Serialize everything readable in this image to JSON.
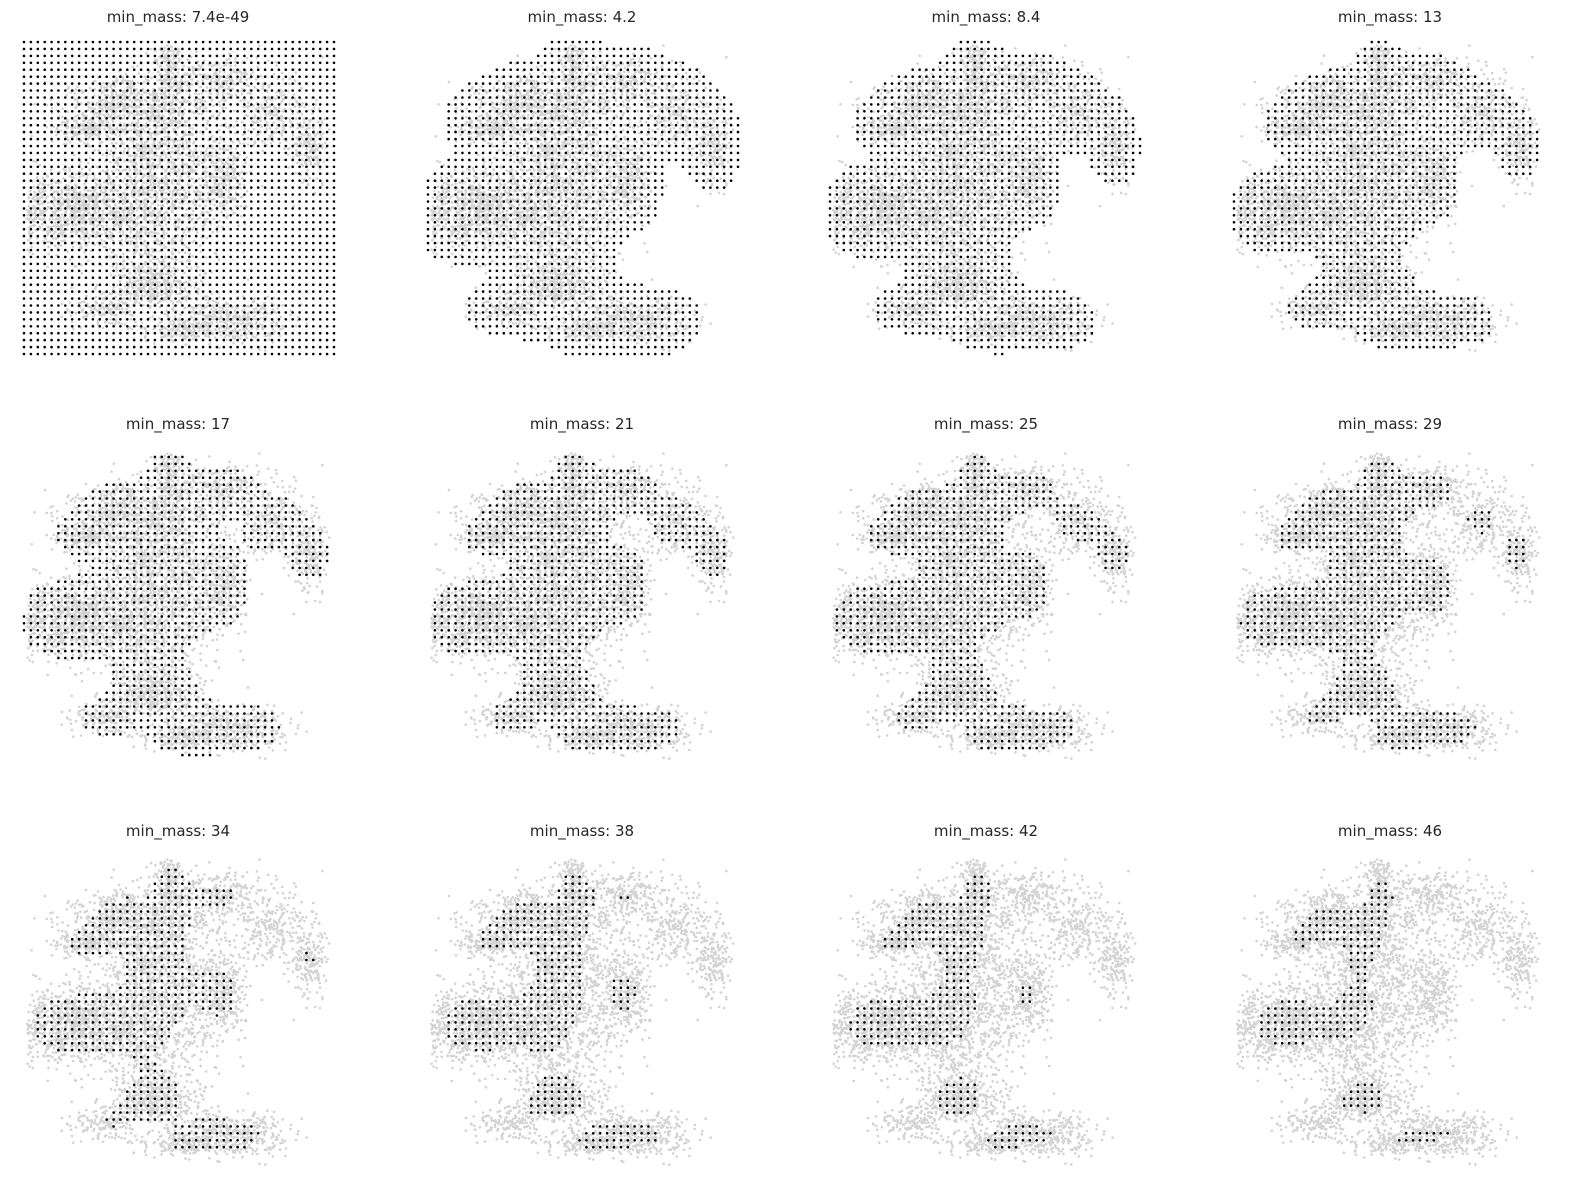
{
  "figure": {
    "layout": "3 rows x 4 columns grid of scatter panels",
    "background_color": "#ffffff",
    "cell_color": "#d3d3d3",
    "grid_point_color": "#000000",
    "axes_visible": false
  },
  "chart_data": [
    {
      "type": "scatter",
      "title": "min_mass:  7.4e-49",
      "threshold": 7.4e-49,
      "grid_coverage": "full square grid (all points shown)"
    },
    {
      "type": "scatter",
      "title": "min_mass:  4.2",
      "threshold": 4.2,
      "grid_coverage": "grid points over whole cell cloud"
    },
    {
      "type": "scatter",
      "title": "min_mass:  8.4",
      "threshold": 8.4,
      "grid_coverage": "grid points over most of cell cloud"
    },
    {
      "type": "scatter",
      "title": "min_mass:  13",
      "threshold": 13,
      "grid_coverage": "grid points over dense regions"
    },
    {
      "type": "scatter",
      "title": "min_mass:  17",
      "threshold": 17,
      "grid_coverage": "grid points over dense regions"
    },
    {
      "type": "scatter",
      "title": "min_mass:  21",
      "threshold": 21,
      "grid_coverage": "grid points over dense regions"
    },
    {
      "type": "scatter",
      "title": "min_mass:  25",
      "threshold": 25,
      "grid_coverage": "grid points over denser regions"
    },
    {
      "type": "scatter",
      "title": "min_mass:  29",
      "threshold": 29,
      "grid_coverage": "grid points over denser regions"
    },
    {
      "type": "scatter",
      "title": "min_mass:  34",
      "threshold": 34,
      "grid_coverage": "sparse grid points in dense cores"
    },
    {
      "type": "scatter",
      "title": "min_mass:  38",
      "threshold": 38,
      "grid_coverage": "sparse grid points in dense cores"
    },
    {
      "type": "scatter",
      "title": "min_mass:  42",
      "threshold": 42,
      "grid_coverage": "few grid points"
    },
    {
      "type": "scatter",
      "title": "min_mass:  46",
      "threshold": 46,
      "grid_coverage": "very few grid points"
    }
  ]
}
